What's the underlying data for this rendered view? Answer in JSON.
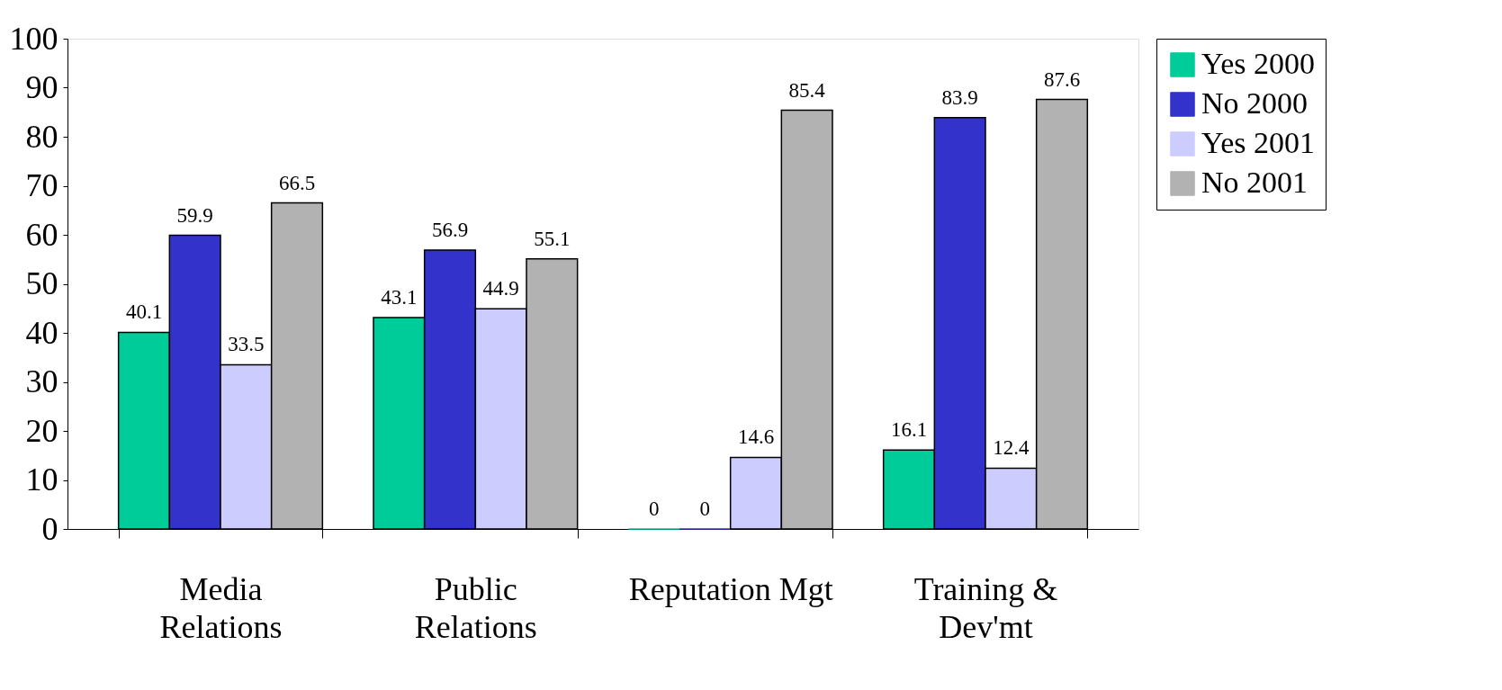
{
  "chart_data": {
    "type": "bar",
    "categories": [
      "Media Relations",
      "Public Relations",
      "Reputation Mgt",
      "Training & Dev'mt"
    ],
    "series": [
      {
        "name": "Yes 2000",
        "color": "#00cc99",
        "values": [
          40.1,
          43.1,
          0,
          16.1
        ]
      },
      {
        "name": "No 2000",
        "color": "#3333cc",
        "values": [
          59.9,
          56.9,
          0,
          83.9
        ]
      },
      {
        "name": "Yes 2001",
        "color": "#ccccff",
        "values": [
          33.5,
          44.9,
          14.6,
          12.4
        ]
      },
      {
        "name": "No 2001",
        "color": "#b2b2b2",
        "values": [
          66.5,
          55.1,
          85.4,
          87.6
        ]
      }
    ],
    "ylim": [
      0,
      100
    ],
    "yticks": [
      0,
      10,
      20,
      30,
      40,
      50,
      60,
      70,
      80,
      90,
      100
    ],
    "data_labels": true,
    "grid": false,
    "legend": "right"
  }
}
